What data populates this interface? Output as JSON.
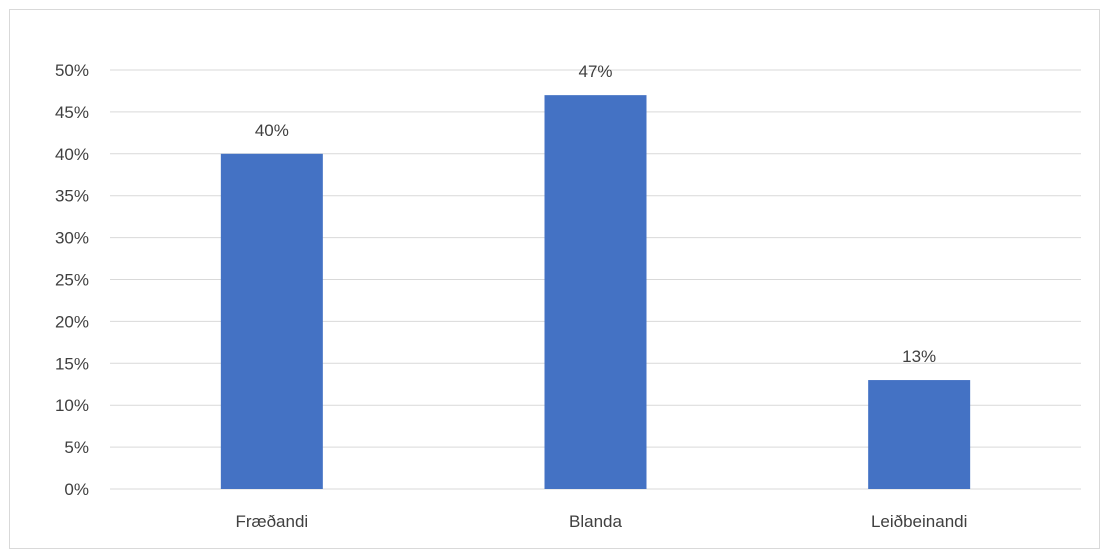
{
  "chart_data": {
    "type": "bar",
    "categories": [
      "Fræðandi",
      "Blanda",
      "Leiðbeinandi"
    ],
    "values": [
      40,
      47,
      13
    ],
    "value_labels": [
      "40%",
      "47%",
      "13%"
    ],
    "y_tick_labels": [
      "0%",
      "5%",
      "10%",
      "15%",
      "20%",
      "25%",
      "30%",
      "35%",
      "40%",
      "45%",
      "50%"
    ],
    "ylim": [
      0,
      50
    ],
    "y_step": 5,
    "grid": true,
    "legend": "none",
    "bar_color": "#4472c4",
    "grid_color": "#d9d9d9"
  }
}
